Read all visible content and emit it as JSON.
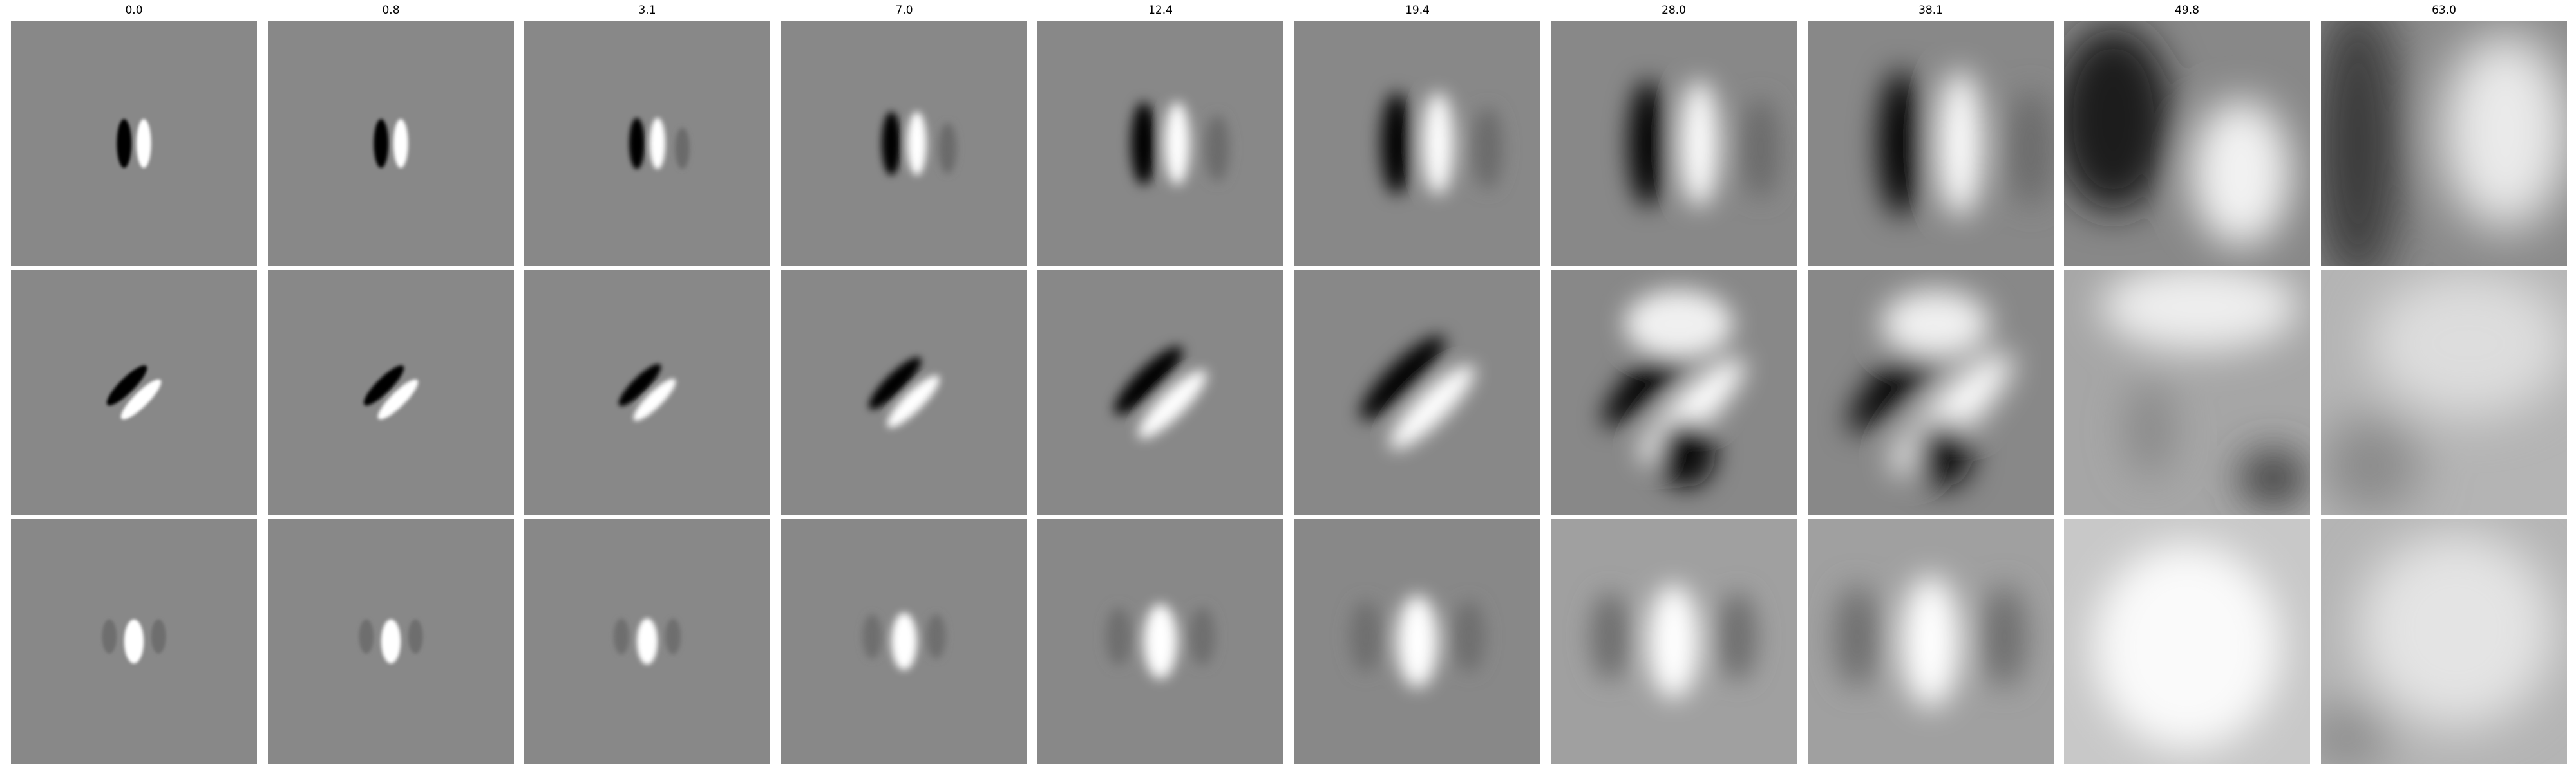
{
  "columns": [
    {
      "title": "0.0",
      "rows": [
        "v-dipole-tiny",
        "diag-dipole-tiny",
        "vertical-blob-tiny"
      ]
    },
    {
      "title": "0.8",
      "rows": [
        "v-dipole-tiny",
        "diag-dipole-tiny",
        "vertical-blob-tiny"
      ]
    },
    {
      "title": "3.1",
      "rows": [
        "v-dipole-small",
        "diag-dipole-small",
        "vertical-blob-small"
      ]
    },
    {
      "title": "7.0",
      "rows": [
        "v-dipole-medium",
        "diag-dipole-medium",
        "vertical-blob-medium"
      ]
    },
    {
      "title": "12.4",
      "rows": [
        "v-dipole-large",
        "diag-dipole-large",
        "vertical-blob-large"
      ]
    },
    {
      "title": "19.4",
      "rows": [
        "v-dipole-xlarge",
        "diag-dipole-xlarge",
        "vertical-blob-xlarge"
      ]
    },
    {
      "title": "28.0",
      "rows": [
        "v-dipole-blurred",
        "diag-blurred-dark-bottom",
        "vertical-blob-blurred"
      ]
    },
    {
      "title": "38.1",
      "rows": [
        "v-dipole-blurred",
        "diag-blurred-dark-bottom",
        "vertical-blob-blurred"
      ]
    },
    {
      "title": "49.8",
      "rows": [
        "dark-left-diffuse",
        "light-top-diffuse",
        "bright-center-diffuse"
      ]
    },
    {
      "title": "63.0",
      "rows": [
        "light-right-diffuse",
        "light-diffuse",
        "light-diffuse"
      ]
    }
  ],
  "colors": {
    "background": "#ffffff",
    "panel_gray": "#888888",
    "dark": "#000000",
    "light": "#ffffff"
  }
}
